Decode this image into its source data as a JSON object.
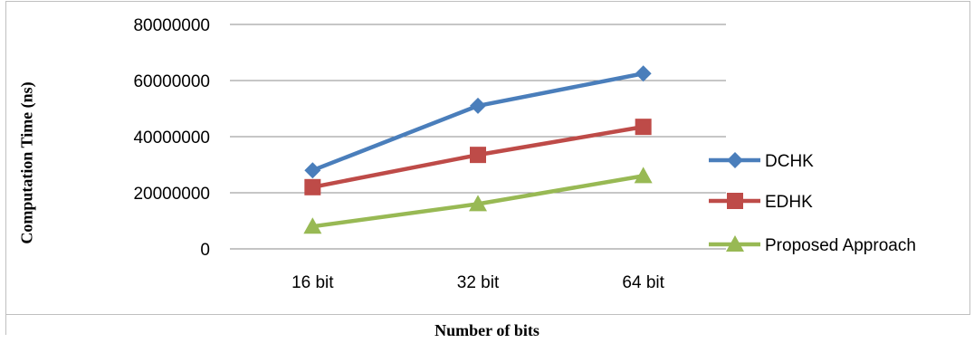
{
  "chart_data": {
    "type": "line",
    "categories": [
      "16 bit",
      "32 bit",
      "64 bit"
    ],
    "series": [
      {
        "name": "DCHK",
        "values": [
          28000000,
          51000000,
          62500000
        ],
        "color": "#4a7ebb",
        "marker": "diamond"
      },
      {
        "name": "EDHK",
        "values": [
          22000000,
          33500000,
          43500000
        ],
        "color": "#be4b48",
        "marker": "square"
      },
      {
        "name": "Proposed Approach",
        "values": [
          8000000,
          16000000,
          26000000
        ],
        "color": "#98b954",
        "marker": "triangle"
      }
    ],
    "title": "",
    "xlabel": "Number of bits",
    "ylabel": "Computation Time (ns)",
    "ylim": [
      0,
      80000000
    ],
    "yticks": [
      0,
      20000000,
      40000000,
      60000000,
      80000000
    ],
    "ytick_labels": [
      "0",
      "20000000",
      "40000000",
      "60000000",
      "80000000"
    ],
    "grid": "horizontal",
    "legend_position": "right"
  }
}
